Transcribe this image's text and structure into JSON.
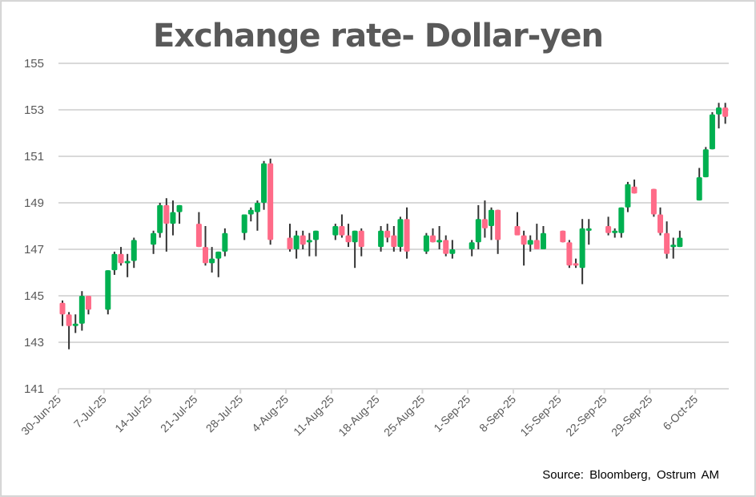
{
  "title": "Exchange rate- Dollar-yen",
  "source": "Source: Bloomberg,  Ostrum  AM",
  "colors": {
    "up": "#00b050",
    "down": "#ff6b88",
    "wick": "#333333",
    "grid": "#d9d9d9",
    "text": "#595959"
  },
  "chart_data": {
    "type": "candlestick",
    "title": "Exchange rate- Dollar-yen",
    "xlabel": "",
    "ylabel": "",
    "ylim": [
      141,
      155
    ],
    "yticks": [
      141,
      143,
      145,
      147,
      149,
      151,
      153,
      155
    ],
    "xticks": [
      "30-Jun-25",
      "7-Jul-25",
      "14-Jul-25",
      "21-Jul-25",
      "28-Jul-25",
      "4-Aug-25",
      "11-Aug-25",
      "18-Aug-25",
      "25-Aug-25",
      "1-Sep-25",
      "8-Sep-25",
      "15-Sep-25",
      "22-Sep-25",
      "29-Sep-25",
      "6-Oct-25"
    ],
    "grid": true,
    "legend": "none",
    "candles": [
      {
        "d": 0,
        "o": 144.7,
        "h": 144.8,
        "l": 143.7,
        "c": 144.2
      },
      {
        "d": 1,
        "o": 144.2,
        "h": 144.3,
        "l": 142.7,
        "c": 143.7
      },
      {
        "d": 2,
        "o": 143.7,
        "h": 144.2,
        "l": 143.4,
        "c": 143.8
      },
      {
        "d": 3,
        "o": 143.8,
        "h": 145.2,
        "l": 143.5,
        "c": 145.0
      },
      {
        "d": 4,
        "o": 145.0,
        "h": 145.0,
        "l": 144.2,
        "c": 144.4
      },
      {
        "d": 7,
        "o": 144.4,
        "h": 146.1,
        "l": 144.2,
        "c": 146.1
      },
      {
        "d": 8,
        "o": 146.1,
        "h": 146.9,
        "l": 145.9,
        "c": 146.8
      },
      {
        "d": 9,
        "o": 146.8,
        "h": 147.1,
        "l": 146.3,
        "c": 146.4
      },
      {
        "d": 10,
        "o": 146.4,
        "h": 146.8,
        "l": 145.8,
        "c": 146.5
      },
      {
        "d": 11,
        "o": 146.5,
        "h": 147.5,
        "l": 146.2,
        "c": 147.4
      },
      {
        "d": 14,
        "o": 147.2,
        "h": 147.8,
        "l": 146.8,
        "c": 147.7
      },
      {
        "d": 15,
        "o": 147.7,
        "h": 149.0,
        "l": 147.5,
        "c": 148.9
      },
      {
        "d": 16,
        "o": 148.9,
        "h": 149.2,
        "l": 146.9,
        "c": 148.1
      },
      {
        "d": 17,
        "o": 148.1,
        "h": 149.1,
        "l": 147.6,
        "c": 148.6
      },
      {
        "d": 18,
        "o": 148.6,
        "h": 148.9,
        "l": 148.1,
        "c": 148.9
      },
      {
        "d": 21,
        "o": 148.1,
        "h": 148.6,
        "l": 147.1,
        "c": 147.1
      },
      {
        "d": 22,
        "o": 147.1,
        "h": 148.0,
        "l": 146.3,
        "c": 146.4
      },
      {
        "d": 23,
        "o": 146.4,
        "h": 147.1,
        "l": 146.0,
        "c": 146.6
      },
      {
        "d": 24,
        "o": 146.6,
        "h": 146.9,
        "l": 145.8,
        "c": 146.9
      },
      {
        "d": 25,
        "o": 146.9,
        "h": 147.9,
        "l": 146.7,
        "c": 147.7
      },
      {
        "d": 28,
        "o": 147.7,
        "h": 148.5,
        "l": 147.4,
        "c": 148.5
      },
      {
        "d": 29,
        "o": 148.5,
        "h": 148.8,
        "l": 148.2,
        "c": 148.7
      },
      {
        "d": 30,
        "o": 148.6,
        "h": 149.1,
        "l": 147.8,
        "c": 149.0
      },
      {
        "d": 31,
        "o": 149.0,
        "h": 150.8,
        "l": 148.7,
        "c": 150.7
      },
      {
        "d": 32,
        "o": 150.7,
        "h": 150.9,
        "l": 147.2,
        "c": 147.4
      },
      {
        "d": 35,
        "o": 147.5,
        "h": 148.1,
        "l": 146.9,
        "c": 147.0
      },
      {
        "d": 36,
        "o": 147.0,
        "h": 147.8,
        "l": 146.6,
        "c": 147.6
      },
      {
        "d": 37,
        "o": 147.6,
        "h": 147.8,
        "l": 147.0,
        "c": 147.2
      },
      {
        "d": 38,
        "o": 147.3,
        "h": 147.7,
        "l": 146.7,
        "c": 147.4
      },
      {
        "d": 39,
        "o": 147.4,
        "h": 147.8,
        "l": 146.7,
        "c": 147.8
      },
      {
        "d": 42,
        "o": 147.6,
        "h": 148.1,
        "l": 147.4,
        "c": 148.0
      },
      {
        "d": 43,
        "o": 148.0,
        "h": 148.5,
        "l": 147.5,
        "c": 147.6
      },
      {
        "d": 44,
        "o": 147.6,
        "h": 148.1,
        "l": 147.1,
        "c": 147.3
      },
      {
        "d": 45,
        "o": 147.3,
        "h": 147.8,
        "l": 146.2,
        "c": 147.8
      },
      {
        "d": 46,
        "o": 147.8,
        "h": 147.9,
        "l": 146.7,
        "c": 147.1
      },
      {
        "d": 49,
        "o": 147.1,
        "h": 148.0,
        "l": 146.9,
        "c": 147.8
      },
      {
        "d": 50,
        "o": 147.8,
        "h": 148.1,
        "l": 147.3,
        "c": 147.5
      },
      {
        "d": 51,
        "o": 147.6,
        "h": 148.0,
        "l": 146.9,
        "c": 147.1
      },
      {
        "d": 52,
        "o": 147.1,
        "h": 148.4,
        "l": 146.9,
        "c": 148.3
      },
      {
        "d": 53,
        "o": 148.3,
        "h": 148.8,
        "l": 146.6,
        "c": 146.9
      },
      {
        "d": 56,
        "o": 146.9,
        "h": 147.7,
        "l": 146.8,
        "c": 147.6
      },
      {
        "d": 57,
        "o": 147.6,
        "h": 147.9,
        "l": 147.3,
        "c": 147.3
      },
      {
        "d": 58,
        "o": 147.4,
        "h": 148.0,
        "l": 147.0,
        "c": 147.4
      },
      {
        "d": 59,
        "o": 147.4,
        "h": 147.6,
        "l": 146.7,
        "c": 146.8
      },
      {
        "d": 60,
        "o": 146.8,
        "h": 147.4,
        "l": 146.6,
        "c": 147.0
      },
      {
        "d": 63,
        "o": 147.0,
        "h": 147.4,
        "l": 146.7,
        "c": 147.3
      },
      {
        "d": 64,
        "o": 147.3,
        "h": 148.9,
        "l": 147.0,
        "c": 148.3
      },
      {
        "d": 65,
        "o": 148.3,
        "h": 149.1,
        "l": 147.5,
        "c": 147.9
      },
      {
        "d": 66,
        "o": 148.0,
        "h": 148.8,
        "l": 147.4,
        "c": 148.7
      },
      {
        "d": 67,
        "o": 148.7,
        "h": 148.7,
        "l": 146.8,
        "c": 147.4
      },
      {
        "d": 70,
        "o": 148.0,
        "h": 148.6,
        "l": 147.7,
        "c": 147.6
      },
      {
        "d": 71,
        "o": 147.6,
        "h": 147.8,
        "l": 146.3,
        "c": 147.2
      },
      {
        "d": 72,
        "o": 147.2,
        "h": 147.6,
        "l": 146.9,
        "c": 147.4
      },
      {
        "d": 73,
        "o": 147.4,
        "h": 148.1,
        "l": 147.0,
        "c": 147.0
      },
      {
        "d": 74,
        "o": 147.0,
        "h": 148.0,
        "l": 147.0,
        "c": 147.7
      },
      {
        "d": 77,
        "o": 147.8,
        "h": 147.8,
        "l": 147.3,
        "c": 147.3
      },
      {
        "d": 78,
        "o": 147.3,
        "h": 147.4,
        "l": 146.2,
        "c": 146.3
      },
      {
        "d": 79,
        "o": 146.4,
        "h": 146.6,
        "l": 146.2,
        "c": 146.3
      },
      {
        "d": 80,
        "o": 146.2,
        "h": 148.3,
        "l": 145.5,
        "c": 147.9
      },
      {
        "d": 81,
        "o": 147.8,
        "h": 148.3,
        "l": 147.2,
        "c": 147.9
      },
      {
        "d": 84,
        "o": 148.0,
        "h": 148.4,
        "l": 147.6,
        "c": 147.7
      },
      {
        "d": 85,
        "o": 147.7,
        "h": 147.9,
        "l": 147.5,
        "c": 147.8
      },
      {
        "d": 86,
        "o": 147.7,
        "h": 148.8,
        "l": 147.5,
        "c": 148.8
      },
      {
        "d": 87,
        "o": 148.8,
        "h": 149.9,
        "l": 148.6,
        "c": 149.8
      },
      {
        "d": 88,
        "o": 149.7,
        "h": 150.0,
        "l": 149.4,
        "c": 149.4
      },
      {
        "d": 91,
        "o": 149.6,
        "h": 149.6,
        "l": 148.4,
        "c": 148.5
      },
      {
        "d": 92,
        "o": 148.5,
        "h": 148.8,
        "l": 147.6,
        "c": 147.7
      },
      {
        "d": 93,
        "o": 147.7,
        "h": 148.2,
        "l": 146.6,
        "c": 146.8
      },
      {
        "d": 94,
        "o": 147.1,
        "h": 147.5,
        "l": 146.6,
        "c": 147.2
      },
      {
        "d": 95,
        "o": 147.1,
        "h": 147.8,
        "l": 147.1,
        "c": 147.5
      },
      {
        "d": 98,
        "o": 149.1,
        "h": 150.5,
        "l": 149.1,
        "c": 150.1
      },
      {
        "d": 99,
        "o": 150.1,
        "h": 151.4,
        "l": 150.1,
        "c": 151.3
      },
      {
        "d": 100,
        "o": 151.3,
        "h": 152.9,
        "l": 151.3,
        "c": 152.8
      },
      {
        "d": 101,
        "o": 152.8,
        "h": 153.3,
        "l": 152.2,
        "c": 153.1
      },
      {
        "d": 102,
        "o": 153.1,
        "h": 153.3,
        "l": 152.4,
        "c": 152.7
      }
    ]
  }
}
